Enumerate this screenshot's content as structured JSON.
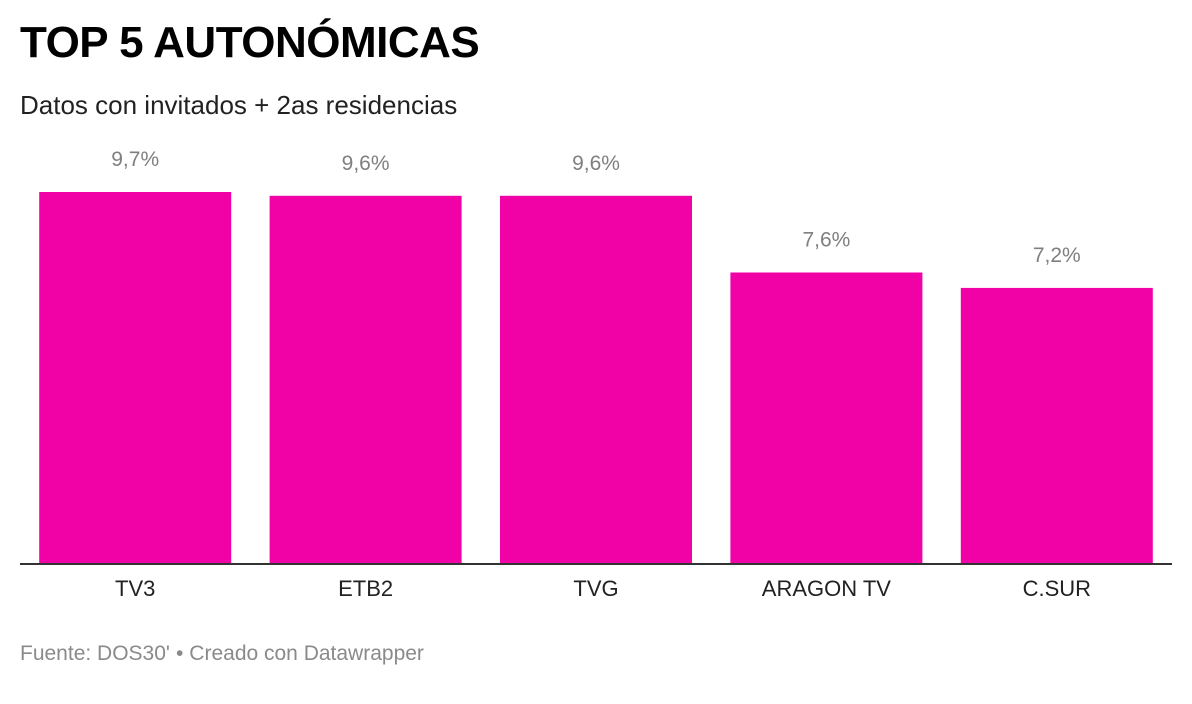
{
  "title": "TOP 5 AUTONÓMICAS",
  "subtitle": "Datos con invitados + 2as residencias",
  "footer": {
    "source": "Fuente: DOS30'",
    "separator": "•",
    "credit": "Creado con Datawrapper"
  },
  "colors": {
    "bar": "#f002a6",
    "baseline": "#333333"
  },
  "chart_data": {
    "type": "bar",
    "categories": [
      "TV3",
      "ETB2",
      "TVG",
      "ARAGON TV",
      "C.SUR"
    ],
    "values": [
      9.7,
      9.6,
      9.6,
      7.6,
      7.2
    ],
    "value_labels": [
      "9,7%",
      "9,6%",
      "9,6%",
      "7,6%",
      "7,2%"
    ],
    "xlabel": "",
    "ylabel": "",
    "ylim": [
      0,
      9.7
    ],
    "grid": false,
    "legend": "none"
  }
}
